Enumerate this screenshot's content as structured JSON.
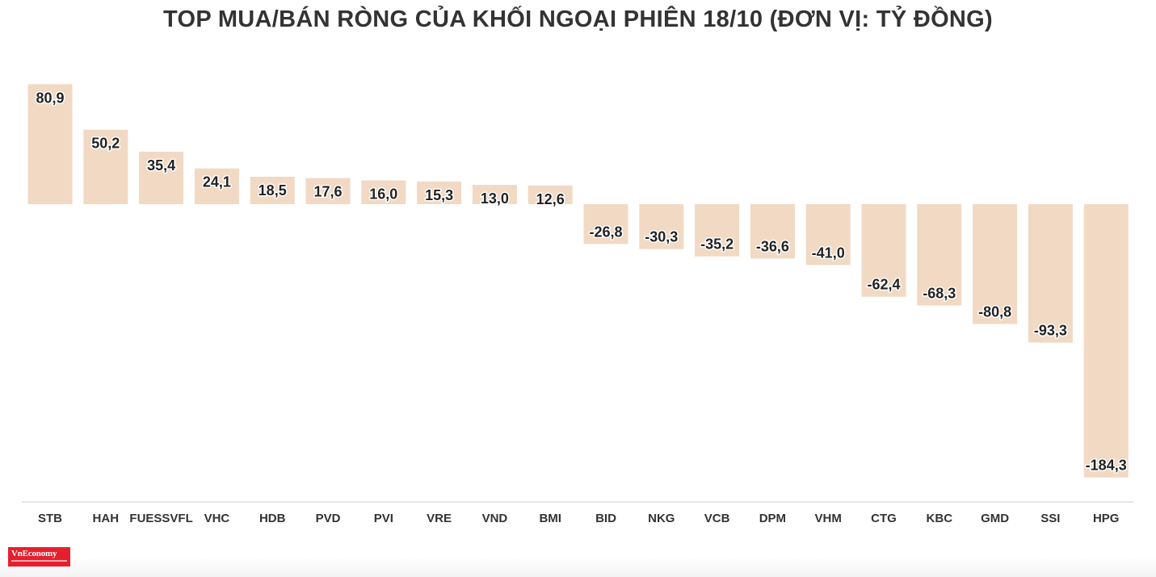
{
  "chart_data": {
    "type": "bar",
    "title": "TOP MUA/BÁN RÒNG CỦA KHỐI NGOẠI PHIÊN 18/10 (ĐƠN VỊ: TỶ ĐỒNG)",
    "categories": [
      "STB",
      "HAH",
      "FUESSVFL",
      "VHC",
      "HDB",
      "PVD",
      "PVI",
      "VRE",
      "VND",
      "BMI",
      "BID",
      "NKG",
      "VCB",
      "DPM",
      "VHM",
      "CTG",
      "KBC",
      "GMD",
      "SSI",
      "HPG"
    ],
    "values": [
      80.9,
      50.2,
      35.4,
      24.1,
      18.5,
      17.6,
      16.0,
      15.3,
      13.0,
      12.6,
      -26.8,
      -30.3,
      -35.2,
      -36.6,
      -41.0,
      -62.4,
      -68.3,
      -80.8,
      -93.3,
      -184.3
    ],
    "labels": [
      "80,9",
      "50,2",
      "35,4",
      "24,1",
      "18,5",
      "17,6",
      "16,0",
      "15,3",
      "13,0",
      "12,6",
      "-26,8",
      "-30,3",
      "-35,2",
      "-36,6",
      "-41,0",
      "-62,4",
      "-68,3",
      "-80,8",
      "-93,3",
      "-184,3"
    ],
    "xlabel": "",
    "ylabel": "",
    "ylim": [
      -200,
      90
    ],
    "grid": false,
    "bar_color": "#f2d9c4",
    "axis_color": "#cccccc"
  },
  "logo": {
    "text": "VnEconomy",
    "color": "#e5202e"
  }
}
